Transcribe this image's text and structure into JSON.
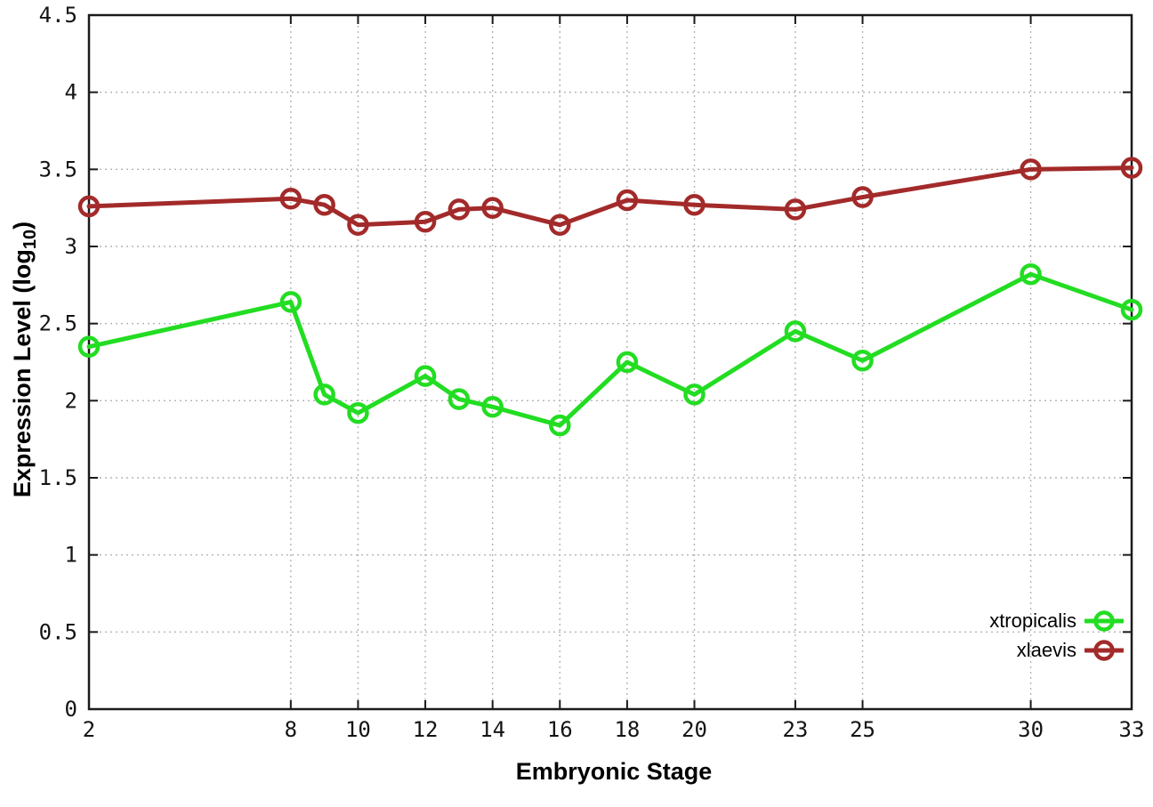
{
  "chart_data": {
    "type": "line",
    "title": "",
    "xlabel": "Embryonic Stage",
    "ylabel_parts": {
      "main": "Expression Level (log",
      "sub": "10",
      "end": ")"
    },
    "xlim": [
      2,
      33
    ],
    "ylim": [
      0,
      4.5
    ],
    "x_ticks": [
      2,
      8,
      10,
      12,
      14,
      16,
      18,
      20,
      23,
      25,
      30,
      33
    ],
    "y_ticks": [
      0,
      0.5,
      1,
      1.5,
      2,
      2.5,
      3,
      3.5,
      4,
      4.5
    ],
    "grid": true,
    "legend_position": "bottom-right",
    "x": [
      2,
      8,
      9,
      10,
      12,
      13,
      14,
      16,
      18,
      20,
      23,
      25,
      30,
      33
    ],
    "series": [
      {
        "name": "xtropicalis",
        "color": "#22dd22",
        "values": [
          2.35,
          2.64,
          2.04,
          1.92,
          2.16,
          2.01,
          1.96,
          1.84,
          2.25,
          2.04,
          2.45,
          2.26,
          2.82,
          2.59
        ]
      },
      {
        "name": "xlaevis",
        "color": "#a32a2a",
        "values": [
          3.26,
          3.31,
          3.27,
          3.14,
          3.16,
          3.24,
          3.25,
          3.14,
          3.3,
          3.27,
          3.24,
          3.32,
          3.5,
          3.51
        ]
      }
    ]
  }
}
